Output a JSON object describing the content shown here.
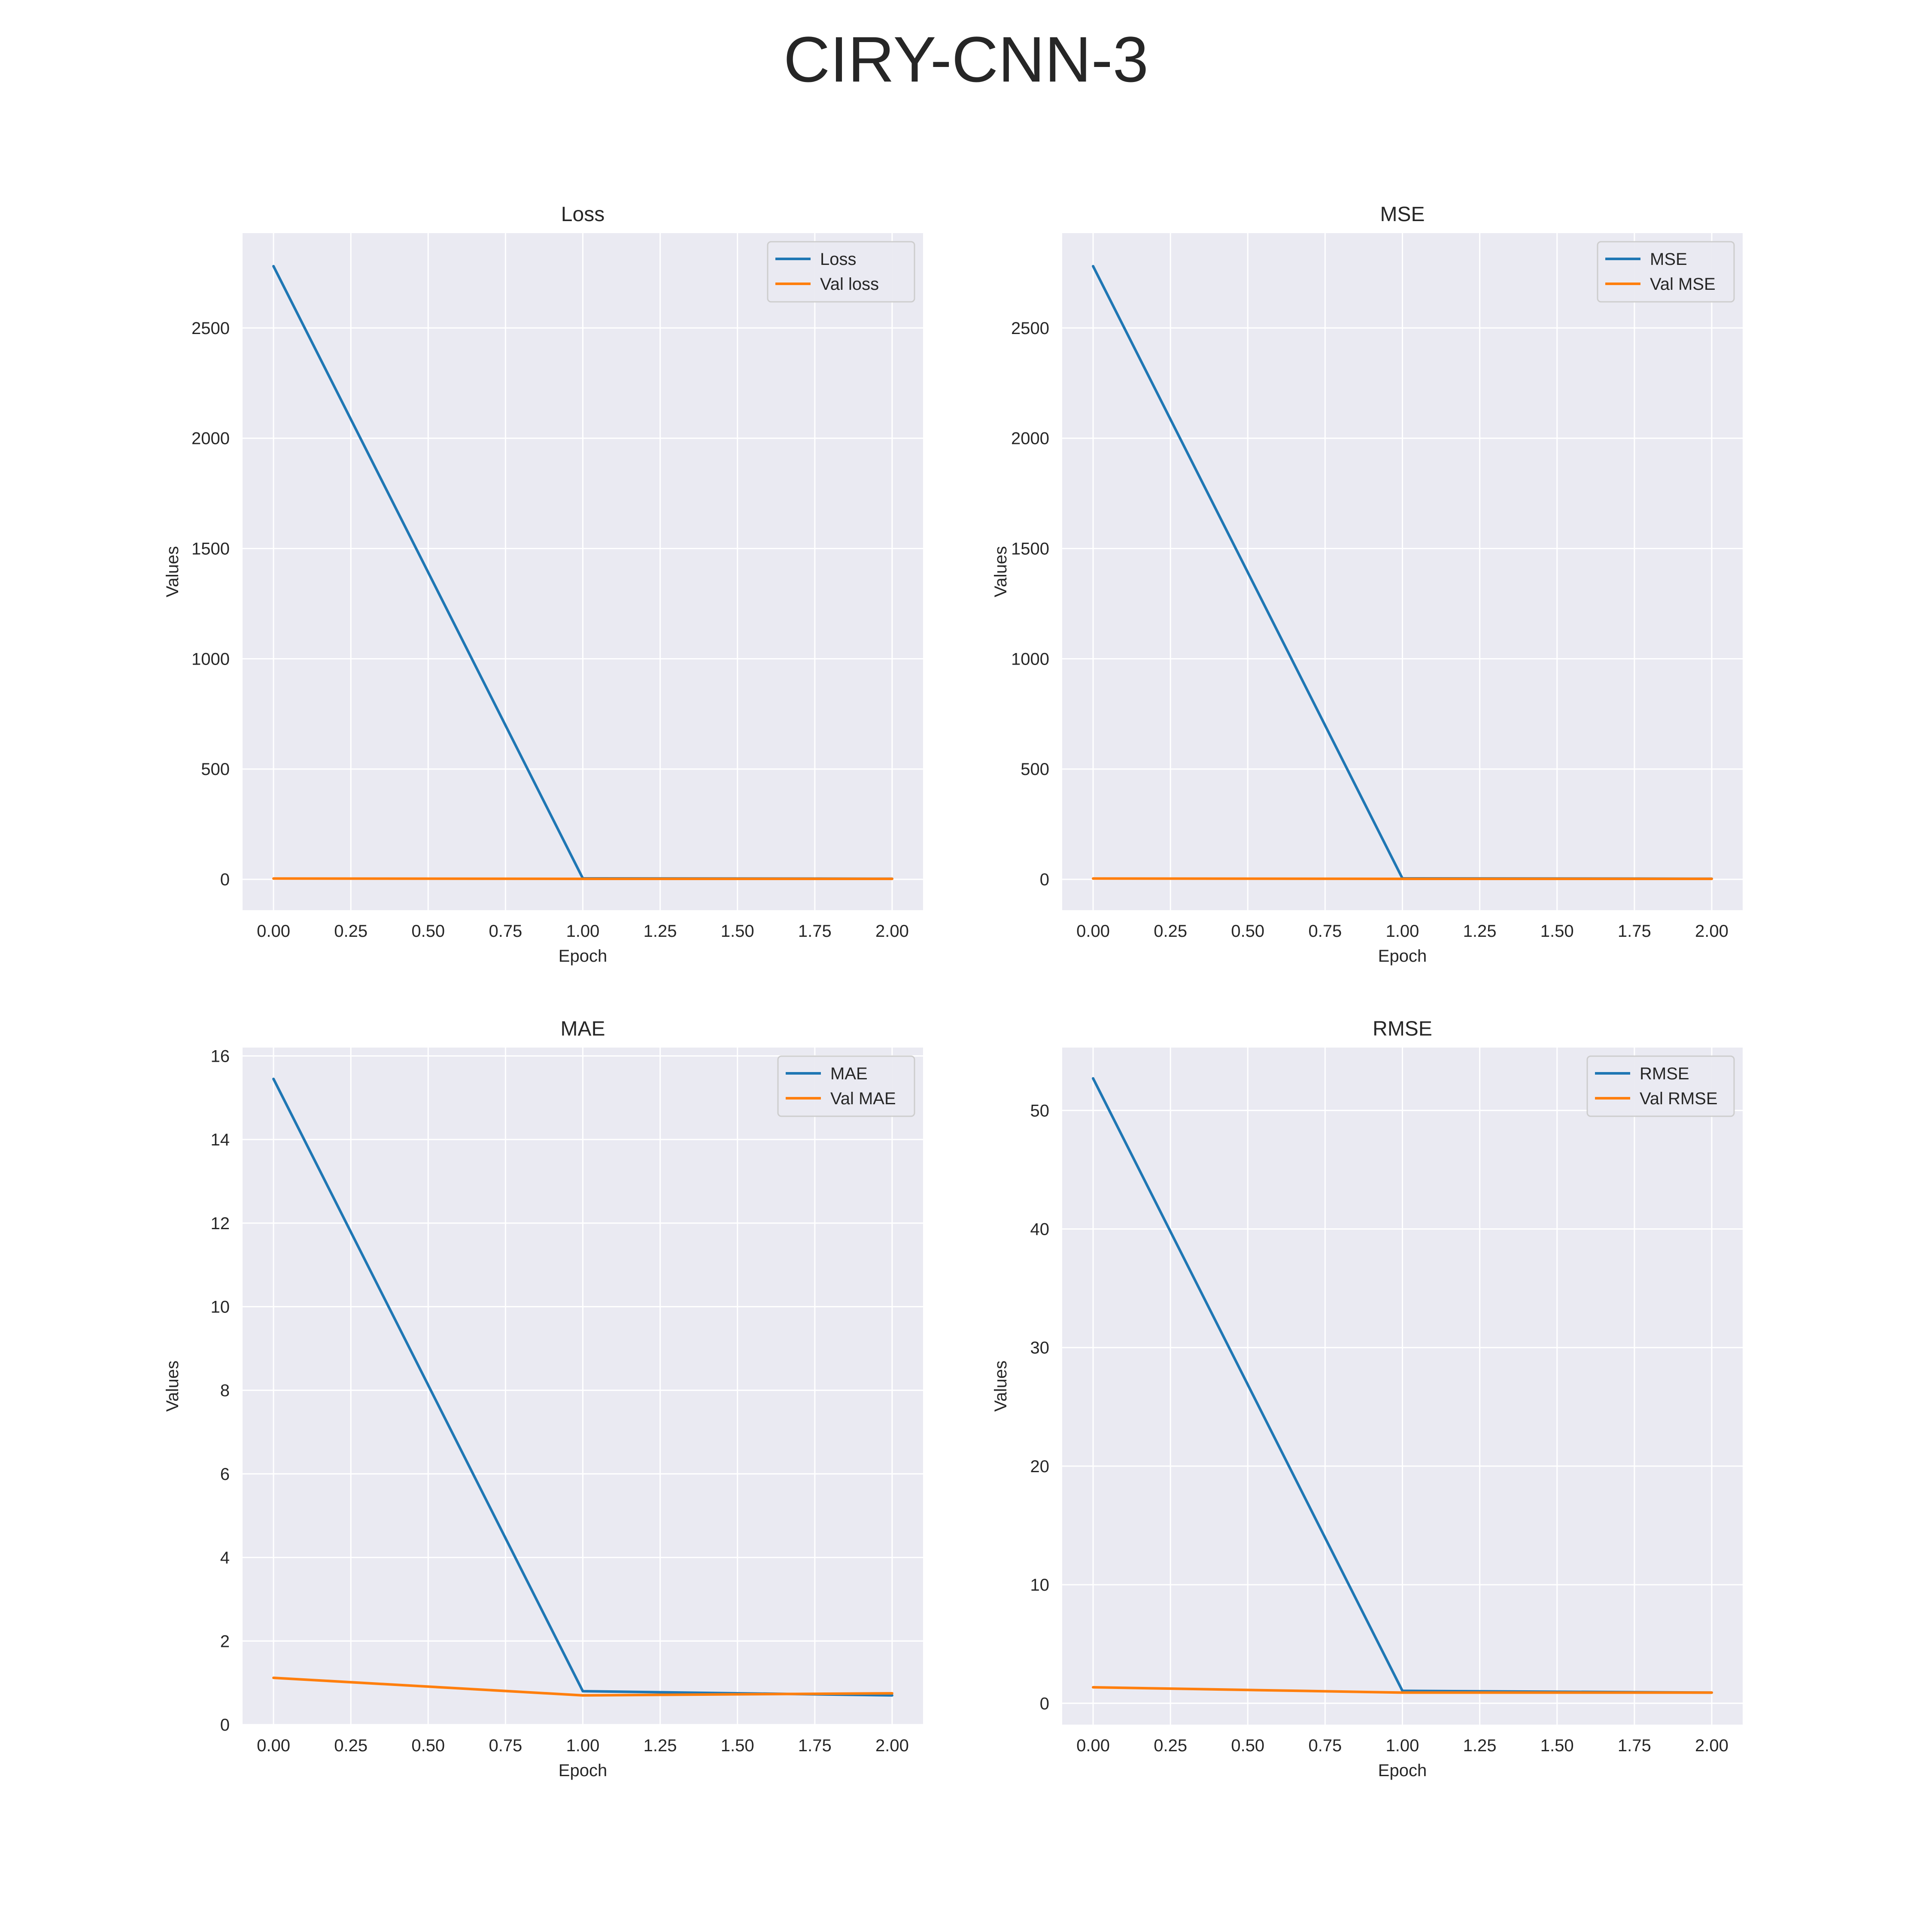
{
  "figure": {
    "title": "CIRY-CNN-3"
  },
  "colors": {
    "series1": "#1f77b4",
    "series2": "#ff7f0e",
    "axes_bg": "#eaeaf2",
    "grid": "#ffffff"
  },
  "chart_data": [
    {
      "type": "line",
      "title": "Loss",
      "xlabel": "Epoch",
      "ylabel": "Values",
      "xlim": [
        -0.1,
        2.1
      ],
      "ylim": [
        -140,
        2930
      ],
      "xticks": [
        "0.00",
        "0.25",
        "0.50",
        "0.75",
        "1.00",
        "1.25",
        "1.50",
        "1.75",
        "2.00"
      ],
      "yticks": [
        "0",
        "500",
        "1000",
        "1500",
        "2000",
        "2500"
      ],
      "grid": true,
      "legend": "top-right",
      "x": [
        0,
        1,
        2
      ],
      "series": [
        {
          "name": "Loss",
          "values": [
            2780,
            4.2,
            2.6
          ]
        },
        {
          "name": "Val loss",
          "values": [
            3.5,
            2.2,
            2.0
          ]
        }
      ]
    },
    {
      "type": "line",
      "title": "MSE",
      "xlabel": "Epoch",
      "ylabel": "Values",
      "xlim": [
        -0.1,
        2.1
      ],
      "ylim": [
        -140,
        2930
      ],
      "xticks": [
        "0.00",
        "0.25",
        "0.50",
        "0.75",
        "1.00",
        "1.25",
        "1.50",
        "1.75",
        "2.00"
      ],
      "yticks": [
        "0",
        "500",
        "1000",
        "1500",
        "2000",
        "2500"
      ],
      "grid": true,
      "legend": "top-right",
      "x": [
        0,
        1,
        2
      ],
      "series": [
        {
          "name": "MSE",
          "values": [
            2780,
            4.2,
            2.6
          ]
        },
        {
          "name": "Val MSE",
          "values": [
            3.5,
            2.2,
            2.0
          ]
        }
      ]
    },
    {
      "type": "line",
      "title": "MAE",
      "xlabel": "Epoch",
      "ylabel": "Values",
      "xlim": [
        -0.1,
        2.1
      ],
      "ylim": [
        0,
        16.2
      ],
      "xticks": [
        "0.00",
        "0.25",
        "0.50",
        "0.75",
        "1.00",
        "1.25",
        "1.50",
        "1.75",
        "2.00"
      ],
      "yticks": [
        "0",
        "2",
        "4",
        "6",
        "8",
        "10",
        "12",
        "14",
        "16"
      ],
      "grid": true,
      "legend": "top-right",
      "x": [
        0,
        1,
        2
      ],
      "series": [
        {
          "name": "MAE",
          "values": [
            15.45,
            0.8,
            0.7
          ]
        },
        {
          "name": "Val MAE",
          "values": [
            1.12,
            0.7,
            0.75
          ]
        }
      ]
    },
    {
      "type": "line",
      "title": "RMSE",
      "xlabel": "Epoch",
      "ylabel": "Values",
      "xlim": [
        -0.1,
        2.1
      ],
      "ylim": [
        -1.8,
        55.3
      ],
      "xticks": [
        "0.00",
        "0.25",
        "0.50",
        "0.75",
        "1.00",
        "1.25",
        "1.50",
        "1.75",
        "2.00"
      ],
      "yticks": [
        "0",
        "10",
        "20",
        "30",
        "40",
        "50"
      ],
      "grid": true,
      "legend": "top-right",
      "x": [
        0,
        1,
        2
      ],
      "series": [
        {
          "name": "RMSE",
          "values": [
            52.7,
            1.05,
            0.9
          ]
        },
        {
          "name": "Val RMSE",
          "values": [
            1.35,
            0.9,
            0.9
          ]
        }
      ]
    }
  ]
}
